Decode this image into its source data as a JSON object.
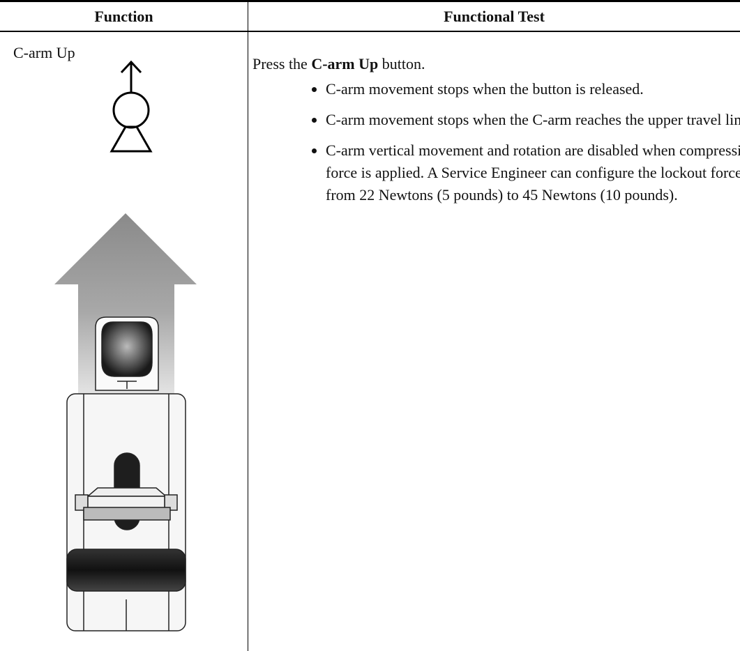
{
  "table": {
    "headers": [
      "Function",
      "Functional Test"
    ],
    "rows": [
      {
        "function": "C-arm Up",
        "test": {
          "intro": [
            "Press the ",
            "C-arm Up",
            " button."
          ],
          "bullets": [
            "C-arm movement stops when the button is released.",
            "C-arm movement stops when the C-arm reaches the upper travel limit.",
            "C-arm vertical movement and rotation are disabled when compression force is applied. A Service Engineer can configure the lockout force from 22 Newtons (5 pounds) to 45 Newtons (10 pounds)."
          ]
        }
      }
    ]
  }
}
